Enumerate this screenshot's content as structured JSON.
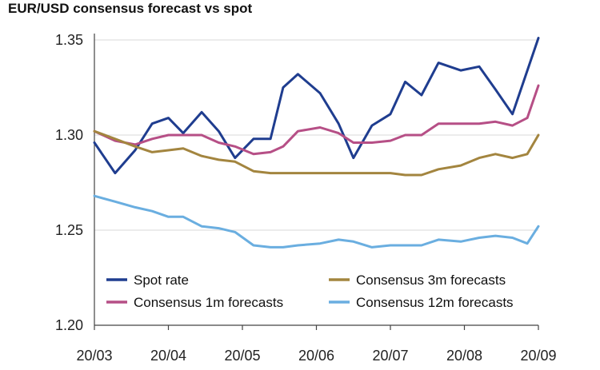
{
  "chart_data": {
    "type": "line",
    "title": "EUR/USD consensus forecast vs spot",
    "xlabel": "",
    "ylabel": "",
    "ylim": [
      1.2,
      1.35
    ],
    "yticks": [
      "1.35",
      "1.30",
      "1.25",
      "1.20"
    ],
    "ytick_values": [
      1.35,
      1.3,
      1.25,
      1.2
    ],
    "xticks": [
      "20/03",
      "20/04",
      "20/05",
      "20/06",
      "20/07",
      "20/08",
      "20/09"
    ],
    "xlim": [
      0,
      6
    ],
    "grid": "horizontal",
    "legend_position": "bottom",
    "series": [
      {
        "name": "Spot rate",
        "color": "#1f3d8f",
        "x": [
          0,
          0.28,
          0.55,
          0.78,
          1.0,
          1.2,
          1.45,
          1.68,
          1.9,
          2.15,
          2.38,
          2.55,
          2.75,
          3.05,
          3.3,
          3.5,
          3.75,
          4.0,
          4.2,
          4.42,
          4.65,
          4.95,
          5.2,
          5.42,
          5.65,
          6.0
        ],
        "values": [
          1.296,
          1.28,
          1.292,
          1.306,
          1.309,
          1.301,
          1.312,
          1.302,
          1.288,
          1.298,
          1.298,
          1.325,
          1.332,
          1.322,
          1.306,
          1.288,
          1.305,
          1.311,
          1.328,
          1.321,
          1.338,
          1.334,
          1.336,
          1.324,
          1.311,
          1.351
        ]
      },
      {
        "name": "Consensus 1m forecasts",
        "color": "#b64f86",
        "x": [
          0,
          0.28,
          0.55,
          0.78,
          1.0,
          1.2,
          1.45,
          1.68,
          1.9,
          2.15,
          2.38,
          2.55,
          2.75,
          3.05,
          3.3,
          3.5,
          3.75,
          4.0,
          4.2,
          4.42,
          4.65,
          4.95,
          5.2,
          5.42,
          5.65,
          5.85,
          6.0
        ],
        "values": [
          1.302,
          1.297,
          1.295,
          1.298,
          1.3,
          1.3,
          1.3,
          1.296,
          1.294,
          1.29,
          1.291,
          1.294,
          1.302,
          1.304,
          1.301,
          1.296,
          1.296,
          1.297,
          1.3,
          1.3,
          1.306,
          1.306,
          1.306,
          1.307,
          1.305,
          1.309,
          1.326
        ]
      },
      {
        "name": "Consensus 3m forecasts",
        "color": "#a3853f",
        "x": [
          0,
          0.28,
          0.55,
          0.78,
          1.0,
          1.2,
          1.45,
          1.68,
          1.9,
          2.15,
          2.38,
          2.55,
          2.75,
          3.05,
          3.3,
          3.5,
          3.75,
          4.0,
          4.2,
          4.42,
          4.65,
          4.95,
          5.2,
          5.42,
          5.65,
          5.85,
          6.0
        ],
        "values": [
          1.302,
          1.298,
          1.294,
          1.291,
          1.292,
          1.293,
          1.289,
          1.287,
          1.286,
          1.281,
          1.28,
          1.28,
          1.28,
          1.28,
          1.28,
          1.28,
          1.28,
          1.28,
          1.279,
          1.279,
          1.282,
          1.284,
          1.288,
          1.29,
          1.288,
          1.29,
          1.3
        ]
      },
      {
        "name": "Consensus 12m forecasts",
        "color": "#6aaee0",
        "x": [
          0,
          0.28,
          0.55,
          0.78,
          1.0,
          1.2,
          1.45,
          1.68,
          1.9,
          2.15,
          2.38,
          2.55,
          2.75,
          3.05,
          3.3,
          3.5,
          3.75,
          4.0,
          4.2,
          4.42,
          4.65,
          4.95,
          5.2,
          5.42,
          5.65,
          5.85,
          6.0
        ],
        "values": [
          1.268,
          1.265,
          1.262,
          1.26,
          1.257,
          1.257,
          1.252,
          1.251,
          1.249,
          1.242,
          1.241,
          1.241,
          1.242,
          1.243,
          1.245,
          1.244,
          1.241,
          1.242,
          1.242,
          1.242,
          1.245,
          1.244,
          1.246,
          1.247,
          1.246,
          1.243,
          1.252
        ]
      }
    ],
    "axis_color": "#444444",
    "grid_color": "#d9d9d9"
  }
}
